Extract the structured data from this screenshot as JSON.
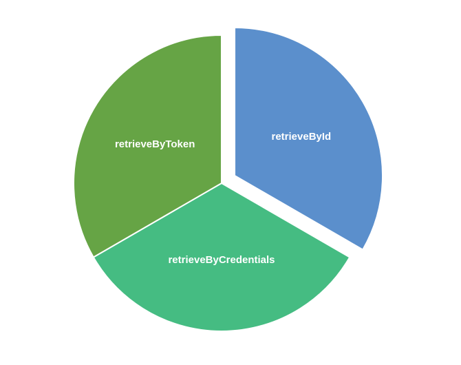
{
  "chart_data": {
    "type": "pie",
    "title": "",
    "legend": "none",
    "categories": [
      "retrieveById",
      "retrieveByCredentials",
      "retrieveByToken"
    ],
    "values": [
      1,
      1,
      1
    ],
    "colors": [
      "#5B8FCC",
      "#45BC82",
      "#66A445"
    ],
    "exploded": [
      "retrieveById"
    ],
    "show_category_labels": true
  }
}
